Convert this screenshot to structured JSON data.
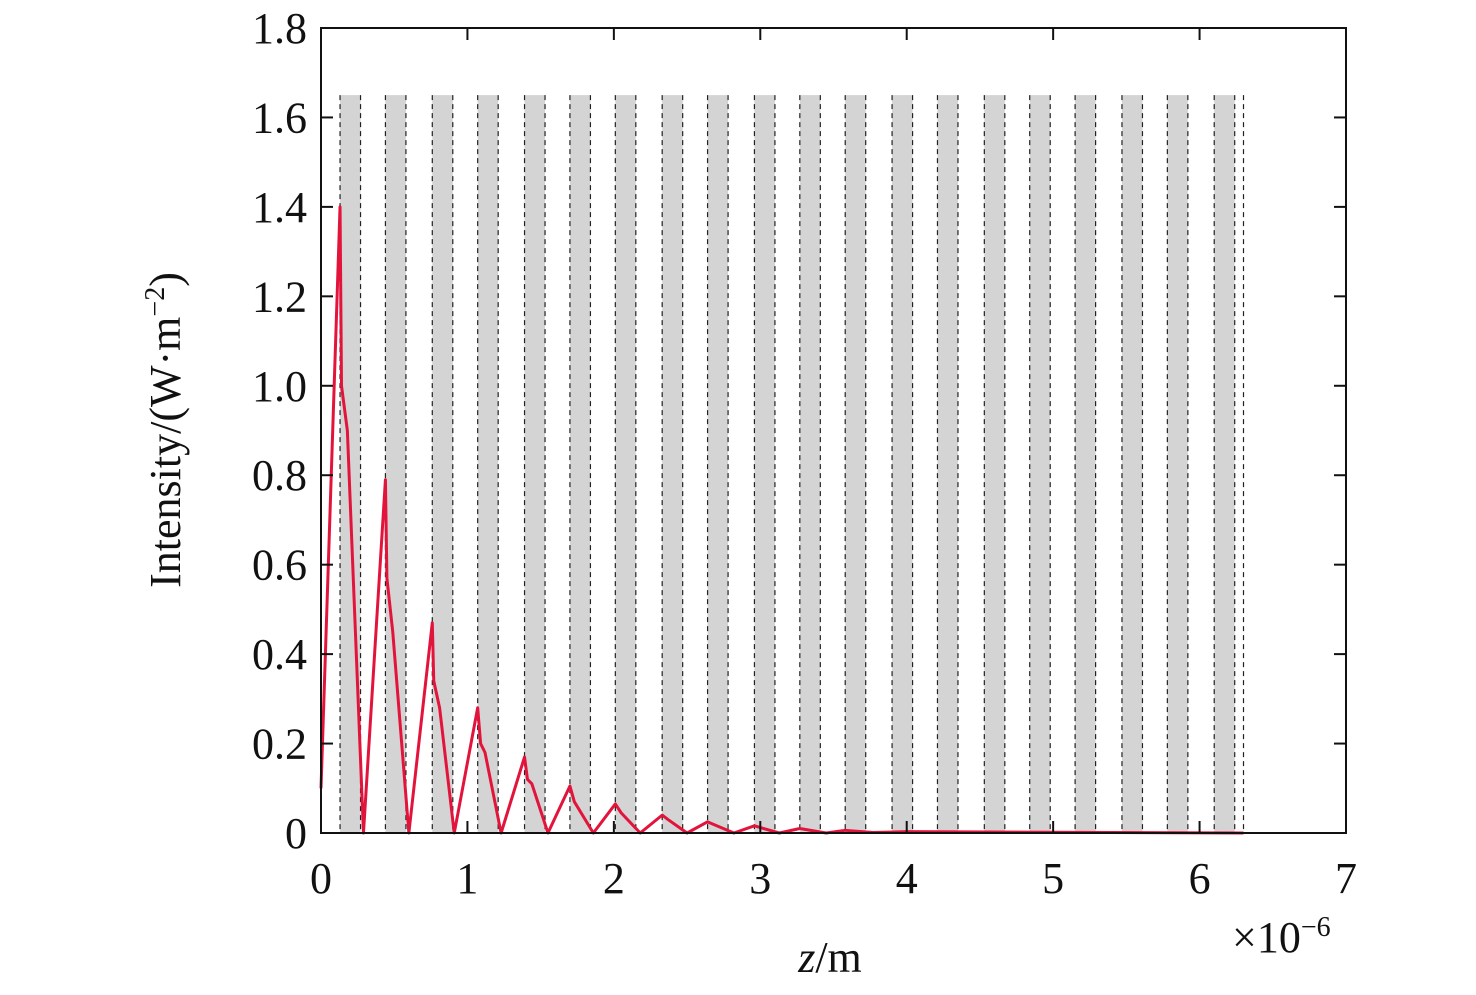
{
  "chart_data": {
    "type": "line",
    "xlabel": {
      "italic": "z",
      "rest": "/m"
    },
    "ylabel": [
      "Intensity/(W·m",
      "−2",
      ")"
    ],
    "x_scale_label": {
      "base": "×10",
      "exponent": "−6"
    },
    "xlim": [
      0,
      7
    ],
    "xticks": [
      0,
      1,
      2,
      3,
      4,
      5,
      6,
      7
    ],
    "ylim": [
      0,
      1.8
    ],
    "yticks": [
      {
        "value": 0,
        "label": "0"
      },
      {
        "value": 0.2,
        "label": "0.2"
      },
      {
        "value": 0.4,
        "label": "0.4"
      },
      {
        "value": 0.6,
        "label": "0.6"
      },
      {
        "value": 0.8,
        "label": "0.8"
      },
      {
        "value": 1.0,
        "label": "1.0"
      },
      {
        "value": 1.2,
        "label": "1.2"
      },
      {
        "value": 1.4,
        "label": "1.4"
      },
      {
        "value": 1.6,
        "label": "1.6"
      },
      {
        "value": 1.8,
        "label": "1.8"
      }
    ],
    "layers": [
      [
        0.13,
        0.27
      ],
      [
        0.44,
        0.58
      ],
      [
        0.76,
        0.9
      ],
      [
        1.07,
        1.21
      ],
      [
        1.39,
        1.53
      ],
      [
        1.7,
        1.84
      ],
      [
        2.01,
        2.15
      ],
      [
        2.33,
        2.47
      ],
      [
        2.64,
        2.78
      ],
      [
        2.96,
        3.1
      ],
      [
        3.27,
        3.41
      ],
      [
        3.58,
        3.72
      ],
      [
        3.9,
        4.04
      ],
      [
        4.21,
        4.35
      ],
      [
        4.53,
        4.67
      ],
      [
        4.84,
        4.98
      ],
      [
        5.15,
        5.29
      ],
      [
        5.47,
        5.61
      ],
      [
        5.78,
        5.92
      ],
      [
        6.1,
        6.24
      ]
    ],
    "layer_height": 1.65,
    "layer_color": "#d4d4d4",
    "end_line": 6.3,
    "series": [
      {
        "color": "#e3143c",
        "x": [
          0,
          0.13,
          0.14,
          0.18,
          0.29,
          0.44,
          0.45,
          0.49,
          0.6,
          0.76,
          0.77,
          0.81,
          0.91,
          1.07,
          1.09,
          1.12,
          1.23,
          1.39,
          1.41,
          1.44,
          1.55,
          1.7,
          1.73,
          1.86,
          2.01,
          2.05,
          2.18,
          2.33,
          2.37,
          2.5,
          2.64,
          2.82,
          2.96,
          3.13,
          3.27,
          3.45,
          3.58,
          3.77,
          4.0,
          6.3
        ],
        "values": [
          0.1,
          1.4,
          1.0,
          0.9,
          0,
          0.79,
          0.57,
          0.45,
          0,
          0.47,
          0.34,
          0.28,
          0,
          0.28,
          0.2,
          0.18,
          0,
          0.17,
          0.12,
          0.11,
          0,
          0.105,
          0.07,
          0,
          0.065,
          0.045,
          0,
          0.04,
          0.03,
          0,
          0.025,
          0,
          0.016,
          0,
          0.01,
          0,
          0.006,
          0.001,
          0.003,
          0
        ]
      }
    ]
  }
}
